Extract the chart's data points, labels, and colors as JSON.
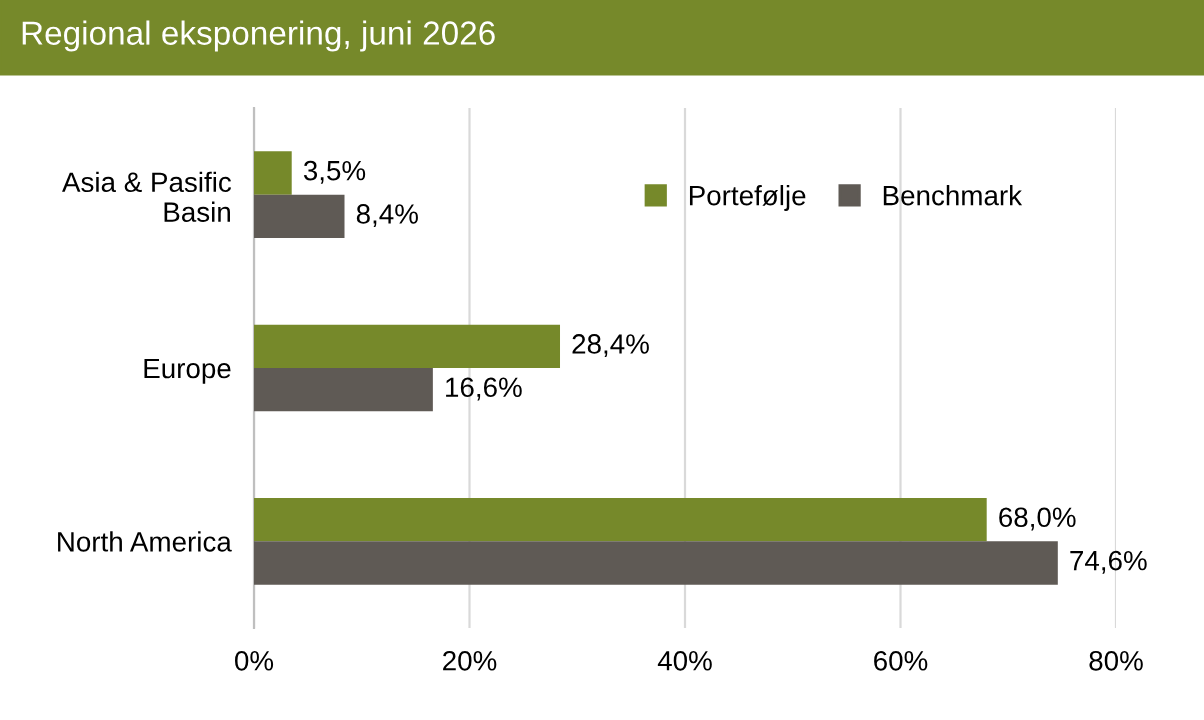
{
  "chart_data": {
    "type": "bar",
    "orientation": "horizontal",
    "title": "Regional eksponering, juni 2026",
    "categories": [
      "Asia & Pasific\nBasin",
      "Europe",
      "North America"
    ],
    "series": [
      {
        "name": "Portefølje",
        "color": "#76892a",
        "values": [
          3.5,
          28.4,
          68.0
        ],
        "value_labels": [
          "3,5%",
          "28,4%",
          "68,0%"
        ]
      },
      {
        "name": "Benchmark",
        "color": "#5f5a55",
        "values": [
          8.4,
          16.6,
          74.6
        ],
        "value_labels": [
          "8,4%",
          "16,6%",
          "74,6%"
        ]
      }
    ],
    "xlim": [
      0,
      80
    ],
    "xticks": [
      {
        "value": 0,
        "label": "0%"
      },
      {
        "value": 20,
        "label": "20%"
      },
      {
        "value": 40,
        "label": "40%"
      },
      {
        "value": 60,
        "label": "60%"
      },
      {
        "value": 80,
        "label": "80%"
      }
    ],
    "grid": "x",
    "legend": "top right"
  }
}
